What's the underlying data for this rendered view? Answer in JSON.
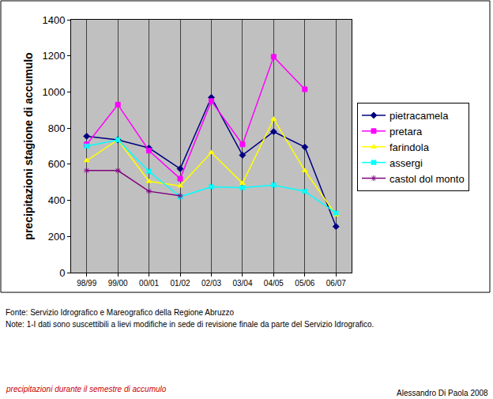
{
  "chart_data": {
    "type": "line",
    "y_label": "precipitazioni stagione di accumulo",
    "categories": [
      "98/99",
      "99/00",
      "00/01",
      "01/02",
      "02/03",
      "03/04",
      "04/05",
      "05/06",
      "06/07"
    ],
    "series": [
      {
        "name": "pietracamela",
        "color": "#000080",
        "marker": "diamond",
        "values": [
          755,
          735,
          690,
          575,
          970,
          650,
          780,
          695,
          255
        ]
      },
      {
        "name": "pretara",
        "color": "#ff00ff",
        "marker": "square",
        "values": [
          710,
          930,
          675,
          520,
          950,
          710,
          1195,
          1015,
          null
        ]
      },
      {
        "name": "farindola",
        "color": "#ffff00",
        "marker": "triangle-up",
        "values": [
          620,
          735,
          505,
          480,
          665,
          495,
          850,
          565,
          320
        ]
      },
      {
        "name": "assergi",
        "color": "#00ffff",
        "marker": "x",
        "values": [
          700,
          735,
          560,
          420,
          475,
          470,
          485,
          450,
          330
        ]
      },
      {
        "name": "castol dol monto",
        "color": "#800080",
        "marker": "asterisk-open",
        "values": [
          565,
          565,
          450,
          425,
          null,
          null,
          null,
          null,
          null
        ]
      }
    ],
    "ylim": [
      0,
      1400
    ],
    "yticks": [
      0,
      200,
      400,
      600,
      800,
      1000,
      1200,
      1400
    ],
    "grid": "x",
    "legend": "right",
    "annotations": [
      "Fonte: Servizio Idrografico e Mareografico della Regione Abruzzo",
      "Note: 1-I dati sono suscettibili a lievi modifiche in sede di revisione finale da parte del Servizio Idrografico.",
      "precipitazioni durante il semestre di accumulo",
      "Alessandro Di Paola 2008"
    ]
  }
}
